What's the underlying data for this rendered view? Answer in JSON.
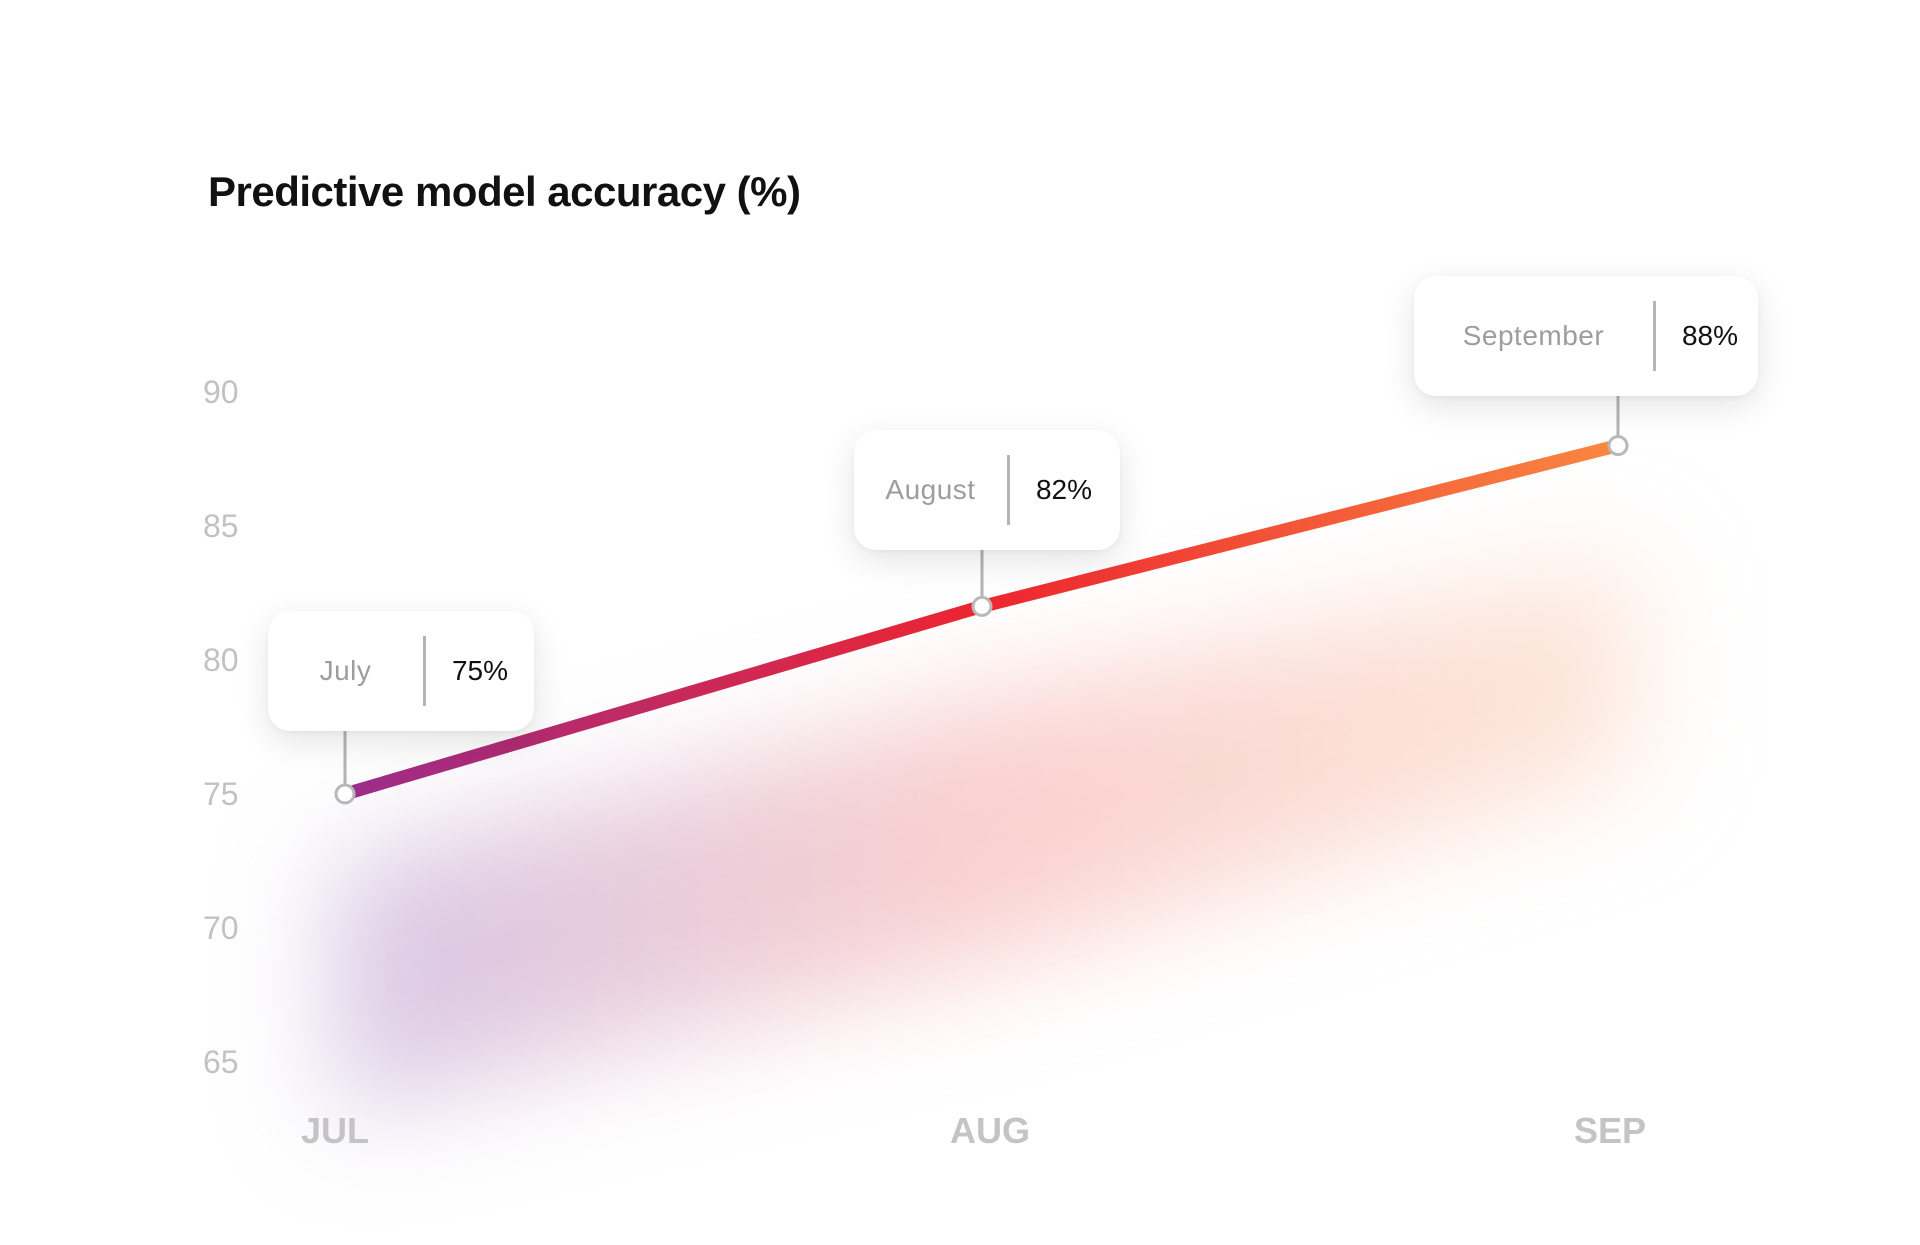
{
  "chart_data": {
    "type": "line",
    "title": "Predictive model accuracy (%)",
    "categories": [
      "JUL",
      "AUG",
      "SEP"
    ],
    "yticks": [
      90,
      85,
      80,
      75,
      70,
      65
    ],
    "ylim": [
      65,
      90
    ],
    "grid": false,
    "series": [
      {
        "values": [
          75,
          82,
          88
        ]
      }
    ],
    "callouts": [
      {
        "label": "July",
        "value": "75%"
      },
      {
        "label": "August",
        "value": "82%"
      },
      {
        "label": "September",
        "value": "88%"
      }
    ],
    "colors": {
      "line_start": "#9b2d8a",
      "line_mid": "#ee2530",
      "line_end": "#f88840",
      "tick_label": "#c2c2c2",
      "category_label": "#c4c4c4",
      "marker_stroke": "#b8b8b8",
      "connector": "#b4b4b4"
    }
  }
}
